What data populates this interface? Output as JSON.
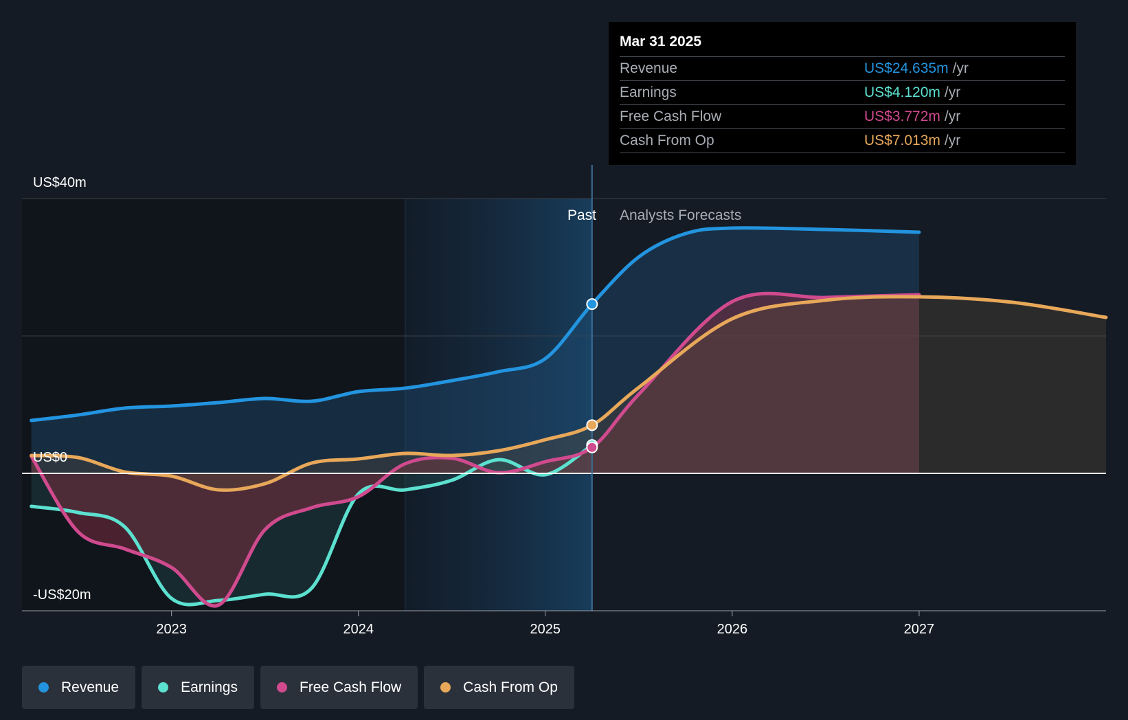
{
  "chart_data": {
    "type": "line",
    "y_axis": {
      "labels": [
        "US$40m",
        "US$0",
        "-US$20m"
      ],
      "ylim": [
        -20,
        40
      ],
      "unit": "US$m"
    },
    "x_axis": {
      "ticks": [
        "2023",
        "2024",
        "2025",
        "2026",
        "2027"
      ],
      "xlim": [
        2022.2,
        2028.0
      ]
    },
    "regions": {
      "past_label": "Past",
      "forecast_label": "Analysts Forecasts",
      "divider_x": 2025.25
    },
    "series": [
      {
        "name": "Revenue",
        "color": "#2394df",
        "points": [
          [
            2022.25,
            7.7
          ],
          [
            2022.5,
            8.5
          ],
          [
            2022.75,
            9.5
          ],
          [
            2023.0,
            9.8
          ],
          [
            2023.25,
            10.3
          ],
          [
            2023.5,
            10.9
          ],
          [
            2023.75,
            10.5
          ],
          [
            2024.0,
            11.9
          ],
          [
            2024.25,
            12.4
          ],
          [
            2024.5,
            13.5
          ],
          [
            2024.75,
            14.8
          ],
          [
            2025.0,
            16.7
          ],
          [
            2025.25,
            24.635
          ],
          [
            2025.5,
            31.5
          ],
          [
            2025.75,
            34.9
          ],
          [
            2026.0,
            35.7
          ],
          [
            2026.5,
            35.5
          ],
          [
            2027.0,
            35.1
          ]
        ]
      },
      {
        "name": "Earnings",
        "color": "#5ce0cf",
        "points": [
          [
            2022.25,
            -4.8
          ],
          [
            2022.5,
            -5.7
          ],
          [
            2022.75,
            -7.8
          ],
          [
            2023.0,
            -18.2
          ],
          [
            2023.25,
            -18.5
          ],
          [
            2023.5,
            -17.6
          ],
          [
            2023.75,
            -16.7
          ],
          [
            2024.0,
            -3.0
          ],
          [
            2024.25,
            -2.4
          ],
          [
            2024.5,
            -1.0
          ],
          [
            2024.75,
            2.0
          ],
          [
            2025.0,
            -0.2
          ],
          [
            2025.25,
            4.12
          ]
        ]
      },
      {
        "name": "Free Cash Flow",
        "color": "#d04a8e",
        "points": [
          [
            2022.25,
            2.5
          ],
          [
            2022.5,
            -8.5
          ],
          [
            2022.75,
            -11.0
          ],
          [
            2023.0,
            -13.7
          ],
          [
            2023.25,
            -19.2
          ],
          [
            2023.5,
            -8.2
          ],
          [
            2023.75,
            -5.0
          ],
          [
            2024.0,
            -3.4
          ],
          [
            2024.25,
            1.4
          ],
          [
            2024.5,
            2.2
          ],
          [
            2024.75,
            0.1
          ],
          [
            2025.0,
            1.7
          ],
          [
            2025.25,
            3.772
          ],
          [
            2025.5,
            11.5
          ],
          [
            2026.0,
            25.0
          ],
          [
            2026.5,
            25.6
          ],
          [
            2027.0,
            26.0
          ]
        ]
      },
      {
        "name": "Cash From Op",
        "color": "#e8a85a",
        "points": [
          [
            2022.25,
            2.6
          ],
          [
            2022.5,
            2.3
          ],
          [
            2022.75,
            0.2
          ],
          [
            2023.0,
            -0.4
          ],
          [
            2023.25,
            -2.4
          ],
          [
            2023.5,
            -1.5
          ],
          [
            2023.75,
            1.5
          ],
          [
            2024.0,
            2.1
          ],
          [
            2024.25,
            2.9
          ],
          [
            2024.5,
            2.6
          ],
          [
            2024.75,
            3.3
          ],
          [
            2025.0,
            4.9
          ],
          [
            2025.25,
            7.013
          ],
          [
            2025.5,
            12.5
          ],
          [
            2026.0,
            22.5
          ],
          [
            2026.5,
            25.2
          ],
          [
            2027.0,
            25.7
          ],
          [
            2027.5,
            24.9
          ],
          [
            2028.0,
            22.7
          ]
        ]
      }
    ],
    "highlight_x": 2025.25
  },
  "tooltip": {
    "date": "Mar 31 2025",
    "rows": [
      {
        "label": "Revenue",
        "value": "US$24.635m",
        "unit": "/yr",
        "color": "#2394df"
      },
      {
        "label": "Earnings",
        "value": "US$4.120m",
        "unit": "/yr",
        "color": "#5ce0cf"
      },
      {
        "label": "Free Cash Flow",
        "value": "US$3.772m",
        "unit": "/yr",
        "color": "#d04a8e"
      },
      {
        "label": "Cash From Op",
        "value": "US$7.013m",
        "unit": "/yr",
        "color": "#e8a85a"
      }
    ]
  },
  "legend": [
    {
      "label": "Revenue",
      "color": "#2394df"
    },
    {
      "label": "Earnings",
      "color": "#5ce0cf"
    },
    {
      "label": "Free Cash Flow",
      "color": "#d04a8e"
    },
    {
      "label": "Cash From Op",
      "color": "#e8a85a"
    }
  ]
}
